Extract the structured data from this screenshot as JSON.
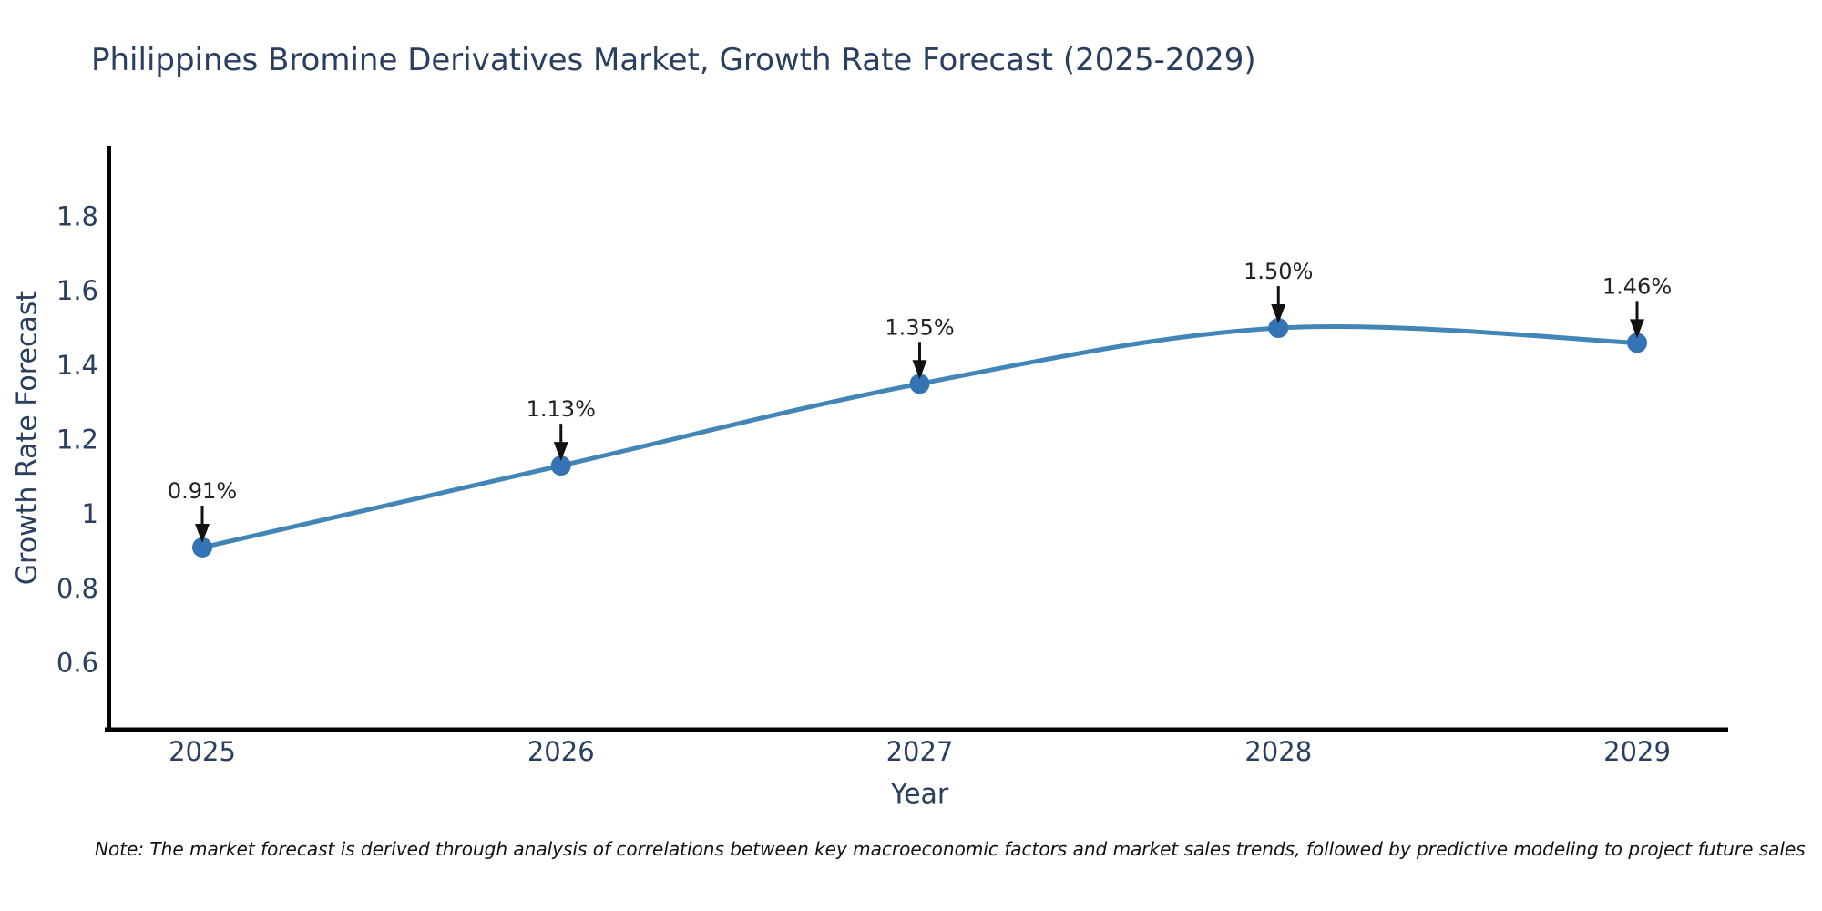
{
  "title": "Philippines Bromine Derivatives Market, Growth Rate Forecast (2025-2029)",
  "note": "Note: The market forecast is derived through analysis of correlations between key macroeconomic factors and market sales trends, followed by predictive modeling to project future sales",
  "colors": {
    "title_text": "#2a3f5f",
    "axis_text": "#2a3f5f",
    "axis_line": "#000000",
    "line": "#4286b8",
    "marker": "#3474b4",
    "arrow": "#111111",
    "background": "#ffffff"
  },
  "chart_data": {
    "type": "line",
    "title": "Philippines Bromine Derivatives Market, Growth Rate Forecast (2025-2029)",
    "x": [
      2025,
      2026,
      2027,
      2028,
      2029
    ],
    "xtick_labels": [
      "2025",
      "2026",
      "2027",
      "2028",
      "2029"
    ],
    "series": [
      {
        "name": "Growth Rate Forecast",
        "values": [
          0.91,
          1.13,
          1.35,
          1.5,
          1.46
        ],
        "point_labels": [
          "0.91%",
          "1.13%",
          "1.35%",
          "1.50%",
          "1.46%"
        ]
      }
    ],
    "xlabel": "Year",
    "ylabel": "Growth Rate Forecast",
    "yticks": [
      0.6,
      0.8,
      1,
      1.2,
      1.4,
      1.6,
      1.8
    ],
    "ytick_labels": [
      "0.6",
      "0.8",
      "1",
      "1.2",
      "1.4",
      "1.6",
      "1.8"
    ],
    "ylim": [
      0.42,
      1.99
    ],
    "grid": false,
    "legend_position": "none",
    "line_shape": "spline",
    "line_color": "#4286b8",
    "marker_color": "#3474b4",
    "arrow_color": "#111111"
  }
}
